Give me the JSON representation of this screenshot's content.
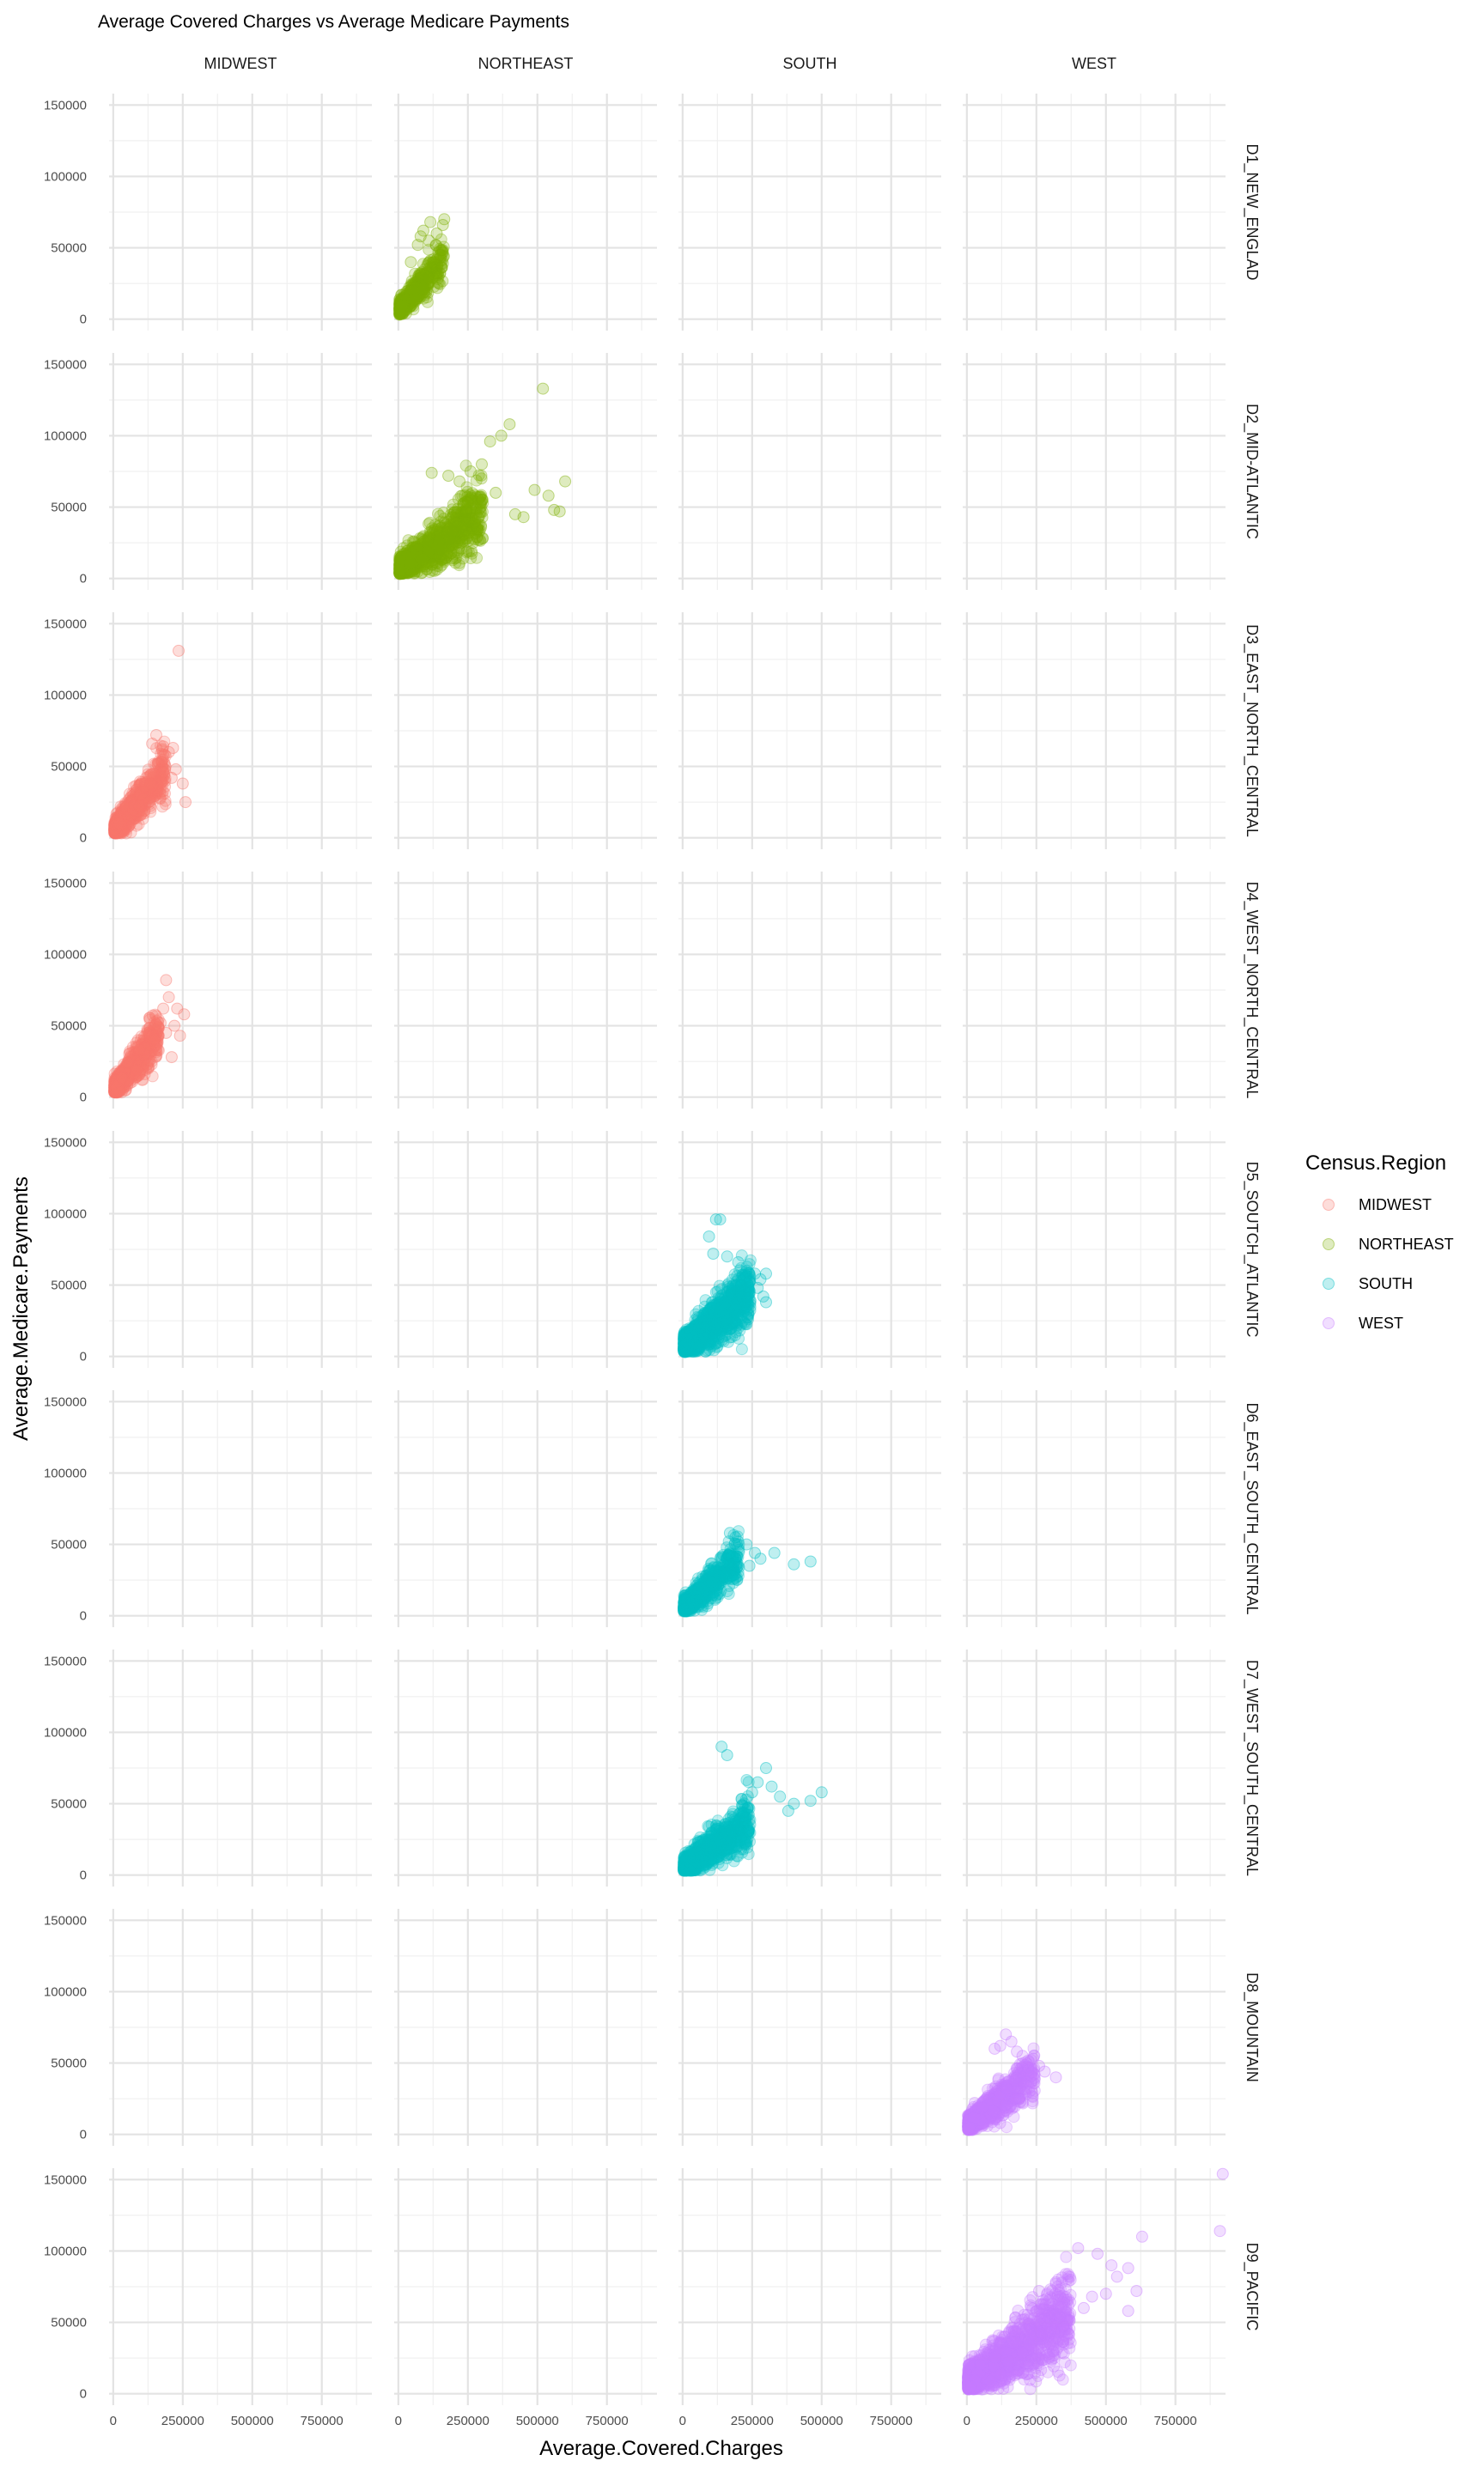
{
  "chart_data": {
    "type": "scatter",
    "title": "Average Covered Charges vs Average Medicare Payments",
    "xlabel": "Average.Covered.Charges",
    "ylabel": "Average.Medicare.Payments",
    "xlim": [
      -15000,
      930000
    ],
    "ylim": [
      -8000,
      158000
    ],
    "x_ticks": [
      0,
      250000,
      500000,
      750000
    ],
    "x_tick_labels": [
      "0",
      "250000",
      "500000",
      "750000"
    ],
    "y_ticks": [
      0,
      50000,
      100000,
      150000
    ],
    "y_tick_labels": [
      "0",
      "50000",
      "100000",
      "150000"
    ],
    "grid": true,
    "theme": "minimal",
    "point_alpha": 0.25,
    "facet_cols": [
      "MIDWEST",
      "NORTHEAST",
      "SOUTH",
      "WEST"
    ],
    "facet_rows": [
      "D1_NEW_ENGLAD",
      "D2_MID-ATLANTIC",
      "D3_EAST_NORTH_CENTRAL",
      "D4_WEST_NORTH_CENTRAL",
      "D5_SOUTCH_ATLANTIC",
      "D6_EAST_SOUTH_CENTRAL",
      "D7_WEST_SOUTH_CENTRAL",
      "D8_MOUNTAIN",
      "D9_PACIFIC"
    ],
    "legend": {
      "title": "Census.Region",
      "position": "right",
      "entries": [
        {
          "label": "MIDWEST",
          "color": "#F8766D"
        },
        {
          "label": "NORTHEAST",
          "color": "#7CAE00"
        },
        {
          "label": "SOUTH",
          "color": "#00BFC4"
        },
        {
          "label": "WEST",
          "color": "#C77CFF"
        }
      ]
    },
    "series": [
      {
        "name": "NORTHEAST",
        "row": "D1_NEW_ENGLAD",
        "col": "NORTHEAST",
        "color": "#7CAE00",
        "cluster": {
          "x_max": 160000,
          "y_at_zero": 11000,
          "slope": 0.22,
          "spread": 6000,
          "density": 500
        },
        "points": [
          [
            90000,
            62000
          ],
          [
            115000,
            68000
          ],
          [
            138000,
            60000
          ],
          [
            160000,
            66000
          ],
          [
            165000,
            70000
          ],
          [
            80000,
            58000
          ],
          [
            135000,
            52000
          ],
          [
            45000,
            40000
          ],
          [
            70000,
            52000
          ],
          [
            150000,
            45000
          ],
          [
            110000,
            55000
          ]
        ]
      },
      {
        "name": "NORTHEAST",
        "row": "D2_MID-ATLANTIC",
        "col": "NORTHEAST",
        "color": "#7CAE00",
        "cluster": {
          "x_max": 300000,
          "y_at_zero": 11000,
          "slope": 0.13,
          "spread": 9000,
          "density": 1100
        },
        "points": [
          [
            520000,
            133000
          ],
          [
            400000,
            108000
          ],
          [
            370000,
            100000
          ],
          [
            330000,
            96000
          ],
          [
            490000,
            62000
          ],
          [
            540000,
            58000
          ],
          [
            560000,
            48000
          ],
          [
            600000,
            68000
          ],
          [
            580000,
            47000
          ],
          [
            450000,
            43000
          ],
          [
            420000,
            45000
          ],
          [
            260000,
            75000
          ],
          [
            220000,
            68000
          ],
          [
            180000,
            72000
          ],
          [
            120000,
            74000
          ],
          [
            300000,
            80000
          ],
          [
            350000,
            60000
          ]
        ]
      },
      {
        "name": "MIDWEST",
        "row": "D3_EAST_NORTH_CENTRAL",
        "col": "MIDWEST",
        "color": "#F8766D",
        "cluster": {
          "x_max": 185000,
          "y_at_zero": 9000,
          "slope": 0.22,
          "spread": 7000,
          "density": 800
        },
        "points": [
          [
            235000,
            131000
          ],
          [
            155000,
            72000
          ],
          [
            180000,
            64000
          ],
          [
            200000,
            60000
          ],
          [
            215000,
            63000
          ],
          [
            225000,
            48000
          ],
          [
            250000,
            38000
          ],
          [
            260000,
            25000
          ],
          [
            210000,
            42000
          ],
          [
            140000,
            66000
          ]
        ]
      },
      {
        "name": "MIDWEST",
        "row": "D4_WEST_NORTH_CENTRAL",
        "col": "MIDWEST",
        "color": "#F8766D",
        "cluster": {
          "x_max": 160000,
          "y_at_zero": 9000,
          "slope": 0.24,
          "spread": 6500,
          "density": 700
        },
        "points": [
          [
            190000,
            82000
          ],
          [
            180000,
            62000
          ],
          [
            200000,
            70000
          ],
          [
            230000,
            62000
          ],
          [
            255000,
            58000
          ],
          [
            220000,
            50000
          ],
          [
            190000,
            45000
          ],
          [
            240000,
            43000
          ],
          [
            210000,
            28000
          ],
          [
            170000,
            52000
          ]
        ]
      },
      {
        "name": "SOUTH",
        "row": "D5_SOUTCH_ATLANTIC",
        "col": "SOUTH",
        "color": "#00BFC4",
        "cluster": {
          "x_max": 240000,
          "y_at_zero": 11000,
          "slope": 0.16,
          "spread": 9000,
          "density": 1300
        },
        "points": [
          [
            120000,
            96000
          ],
          [
            135000,
            96000
          ],
          [
            95000,
            84000
          ],
          [
            110000,
            72000
          ],
          [
            160000,
            70000
          ],
          [
            200000,
            66000
          ],
          [
            230000,
            60000
          ],
          [
            260000,
            58000
          ],
          [
            280000,
            54000
          ],
          [
            300000,
            58000
          ],
          [
            270000,
            48000
          ],
          [
            290000,
            42000
          ],
          [
            300000,
            38000
          ],
          [
            240000,
            44000
          ]
        ]
      },
      {
        "name": "SOUTH",
        "row": "D6_EAST_SOUTH_CENTRAL",
        "col": "SOUTH",
        "color": "#00BFC4",
        "cluster": {
          "x_max": 200000,
          "y_at_zero": 9000,
          "slope": 0.17,
          "spread": 6500,
          "density": 700
        },
        "points": [
          [
            170000,
            58000
          ],
          [
            190000,
            55000
          ],
          [
            200000,
            52000
          ],
          [
            230000,
            50000
          ],
          [
            260000,
            44000
          ],
          [
            280000,
            40000
          ],
          [
            330000,
            44000
          ],
          [
            400000,
            36000
          ],
          [
            460000,
            38000
          ],
          [
            240000,
            35000
          ]
        ]
      },
      {
        "name": "SOUTH",
        "row": "D7_WEST_SOUTH_CENTRAL",
        "col": "SOUTH",
        "color": "#00BFC4",
        "cluster": {
          "x_max": 240000,
          "y_at_zero": 9000,
          "slope": 0.13,
          "spread": 7000,
          "density": 1000
        },
        "points": [
          [
            140000,
            90000
          ],
          [
            160000,
            84000
          ],
          [
            300000,
            75000
          ],
          [
            270000,
            65000
          ],
          [
            320000,
            62000
          ],
          [
            350000,
            55000
          ],
          [
            400000,
            50000
          ],
          [
            460000,
            52000
          ],
          [
            500000,
            58000
          ],
          [
            380000,
            45000
          ],
          [
            250000,
            58000
          ]
        ]
      },
      {
        "name": "WEST",
        "row": "D8_MOUNTAIN",
        "col": "WEST",
        "color": "#C77CFF",
        "cluster": {
          "x_max": 240000,
          "y_at_zero": 11000,
          "slope": 0.15,
          "spread": 7000,
          "density": 800
        },
        "points": [
          [
            140000,
            70000
          ],
          [
            160000,
            65000
          ],
          [
            120000,
            62000
          ],
          [
            100000,
            60000
          ],
          [
            200000,
            55000
          ],
          [
            260000,
            48000
          ],
          [
            280000,
            44000
          ],
          [
            320000,
            40000
          ],
          [
            220000,
            42000
          ],
          [
            180000,
            58000
          ]
        ]
      },
      {
        "name": "WEST",
        "row": "D9_PACIFIC",
        "col": "WEST",
        "color": "#C77CFF",
        "cluster": {
          "x_max": 370000,
          "y_at_zero": 13000,
          "slope": 0.13,
          "spread": 11000,
          "density": 1500
        },
        "points": [
          [
            920000,
            154000
          ],
          [
            910000,
            114000
          ],
          [
            630000,
            110000
          ],
          [
            400000,
            102000
          ],
          [
            470000,
            98000
          ],
          [
            520000,
            90000
          ],
          [
            580000,
            88000
          ],
          [
            540000,
            82000
          ],
          [
            610000,
            72000
          ],
          [
            500000,
            70000
          ],
          [
            450000,
            68000
          ],
          [
            260000,
            72000
          ],
          [
            320000,
            78000
          ],
          [
            350000,
            66000
          ],
          [
            580000,
            58000
          ],
          [
            420000,
            60000
          ]
        ]
      }
    ]
  }
}
